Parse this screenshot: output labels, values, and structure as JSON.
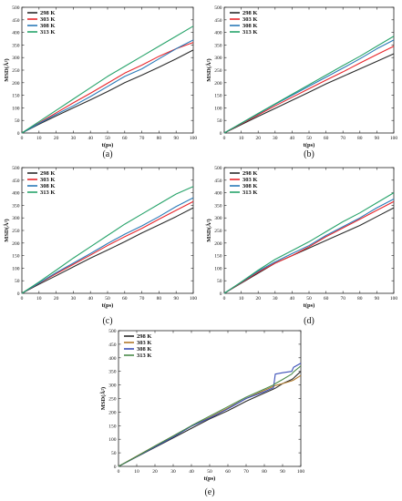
{
  "chart_data": [
    {
      "type": "line",
      "panel_label": "(a)",
      "xlabel": "t(ps)",
      "ylabel": "MSD(Å²)",
      "xlim": [
        0,
        100
      ],
      "ylim": [
        0,
        500
      ],
      "xticks": [
        0,
        10,
        20,
        30,
        40,
        50,
        60,
        70,
        80,
        90,
        100
      ],
      "yticks": [
        0,
        50,
        100,
        150,
        200,
        250,
        300,
        350,
        400,
        450,
        500
      ],
      "legend_position": "top-left",
      "x": [
        0,
        10,
        20,
        30,
        40,
        50,
        60,
        70,
        80,
        90,
        100
      ],
      "series": [
        {
          "name": "298 K",
          "color": "#2b2b2b",
          "values": [
            0,
            35,
            68,
            100,
            132,
            165,
            200,
            230,
            262,
            295,
            330
          ]
        },
        {
          "name": "303 K",
          "color": "#e8262b",
          "values": [
            0,
            40,
            80,
            120,
            158,
            198,
            238,
            270,
            305,
            335,
            360
          ]
        },
        {
          "name": "308 K",
          "color": "#2a7ab8",
          "values": [
            0,
            38,
            74,
            108,
            145,
            185,
            225,
            255,
            295,
            335,
            370
          ]
        },
        {
          "name": "313 K",
          "color": "#27a36a",
          "values": [
            0,
            45,
            90,
            135,
            180,
            225,
            265,
            305,
            345,
            385,
            425
          ]
        }
      ]
    },
    {
      "type": "line",
      "panel_label": "(b)",
      "xlabel": "t(ps)",
      "ylabel": "MSD(Å²)",
      "xlim": [
        0,
        100
      ],
      "ylim": [
        0,
        500
      ],
      "xticks": [
        0,
        10,
        20,
        30,
        40,
        50,
        60,
        70,
        80,
        90,
        100
      ],
      "yticks": [
        0,
        50,
        100,
        150,
        200,
        250,
        300,
        350,
        400,
        450,
        500
      ],
      "legend_position": "top-left",
      "x": [
        0,
        10,
        20,
        30,
        40,
        50,
        60,
        70,
        80,
        90,
        100
      ],
      "series": [
        {
          "name": "298 K",
          "color": "#2b2b2b",
          "values": [
            0,
            33,
            66,
            98,
            130,
            162,
            195,
            225,
            255,
            285,
            315
          ]
        },
        {
          "name": "303 K",
          "color": "#e8262b",
          "values": [
            0,
            36,
            72,
            108,
            142,
            176,
            210,
            243,
            278,
            312,
            345
          ]
        },
        {
          "name": "308 K",
          "color": "#2a7ab8",
          "values": [
            0,
            38,
            76,
            114,
            150,
            186,
            222,
            258,
            295,
            335,
            370
          ]
        },
        {
          "name": "313 K",
          "color": "#27a36a",
          "values": [
            0,
            39,
            78,
            116,
            154,
            192,
            230,
            268,
            305,
            345,
            385
          ]
        }
      ]
    },
    {
      "type": "line",
      "panel_label": "(c)",
      "xlabel": "t(ps)",
      "ylabel": "MSD(Å²)",
      "xlim": [
        0,
        100
      ],
      "ylim": [
        0,
        500
      ],
      "xticks": [
        0,
        10,
        20,
        30,
        40,
        50,
        60,
        70,
        80,
        90,
        100
      ],
      "yticks": [
        0,
        50,
        100,
        150,
        200,
        250,
        300,
        350,
        400,
        450,
        500
      ],
      "legend_position": "top-left",
      "x": [
        0,
        10,
        20,
        30,
        40,
        50,
        60,
        70,
        80,
        90,
        100
      ],
      "series": [
        {
          "name": "298 K",
          "color": "#2b2b2b",
          "values": [
            0,
            36,
            70,
            105,
            140,
            172,
            205,
            240,
            272,
            305,
            340
          ]
        },
        {
          "name": "303 K",
          "color": "#e8262b",
          "values": [
            0,
            40,
            78,
            115,
            152,
            190,
            225,
            258,
            295,
            330,
            365
          ]
        },
        {
          "name": "308 K",
          "color": "#2a7ab8",
          "values": [
            0,
            41,
            82,
            120,
            158,
            198,
            235,
            268,
            305,
            345,
            380
          ]
        },
        {
          "name": "313 K",
          "color": "#27a36a",
          "values": [
            0,
            45,
            92,
            140,
            185,
            230,
            275,
            315,
            355,
            395,
            425
          ]
        }
      ]
    },
    {
      "type": "line",
      "panel_label": "(d)",
      "xlabel": "t(ps)",
      "ylabel": "MSD(Å²)",
      "xlim": [
        0,
        100
      ],
      "ylim": [
        0,
        500
      ],
      "xticks": [
        0,
        10,
        20,
        30,
        40,
        50,
        60,
        70,
        80,
        90,
        100
      ],
      "yticks": [
        0,
        50,
        100,
        150,
        200,
        250,
        300,
        350,
        400,
        450,
        500
      ],
      "legend_position": "top-left",
      "x": [
        0,
        10,
        20,
        30,
        40,
        50,
        60,
        70,
        80,
        90,
        100
      ],
      "series": [
        {
          "name": "298 K",
          "color": "#2b2b2b",
          "values": [
            0,
            40,
            80,
            120,
            150,
            180,
            210,
            240,
            270,
            305,
            340
          ]
        },
        {
          "name": "303 K",
          "color": "#e8262b",
          "values": [
            0,
            42,
            84,
            120,
            150,
            185,
            225,
            260,
            295,
            330,
            365
          ]
        },
        {
          "name": "308 K",
          "color": "#2a7ab8",
          "values": [
            0,
            44,
            88,
            125,
            158,
            190,
            230,
            265,
            300,
            340,
            375
          ]
        },
        {
          "name": "313 K",
          "color": "#27a36a",
          "values": [
            0,
            45,
            92,
            135,
            170,
            205,
            245,
            285,
            320,
            360,
            400
          ]
        }
      ]
    },
    {
      "type": "line",
      "panel_label": "(e)",
      "xlabel": "t(ps)",
      "ylabel": "MSD(Å²)",
      "xlim": [
        0,
        100
      ],
      "ylim": [
        0,
        500
      ],
      "xticks": [
        0,
        10,
        20,
        30,
        40,
        50,
        60,
        70,
        80,
        90,
        100
      ],
      "yticks": [
        0,
        50,
        100,
        150,
        200,
        250,
        300,
        350,
        400,
        450,
        500
      ],
      "legend_position": "top-left",
      "x": [
        0,
        10,
        20,
        30,
        40,
        50,
        60,
        70,
        80,
        85,
        86,
        90,
        95,
        96,
        100
      ],
      "series": [
        {
          "name": "298 K",
          "color": "#2b2b2b",
          "values": [
            0,
            35,
            70,
            105,
            140,
            175,
            205,
            240,
            270,
            285,
            288,
            305,
            320,
            325,
            350
          ]
        },
        {
          "name": "303 K",
          "color": "#b07a2a",
          "values": [
            0,
            38,
            75,
            112,
            148,
            180,
            215,
            250,
            280,
            295,
            298,
            305,
            315,
            318,
            335
          ]
        },
        {
          "name": "308 K",
          "color": "#3b4fb8",
          "values": [
            0,
            36,
            72,
            108,
            148,
            178,
            212,
            250,
            275,
            290,
            340,
            345,
            350,
            365,
            380
          ]
        },
        {
          "name": "313 K",
          "color": "#4a8a4a",
          "values": [
            0,
            37,
            75,
            112,
            150,
            185,
            220,
            255,
            285,
            300,
            305,
            320,
            340,
            348,
            370
          ]
        }
      ]
    }
  ]
}
